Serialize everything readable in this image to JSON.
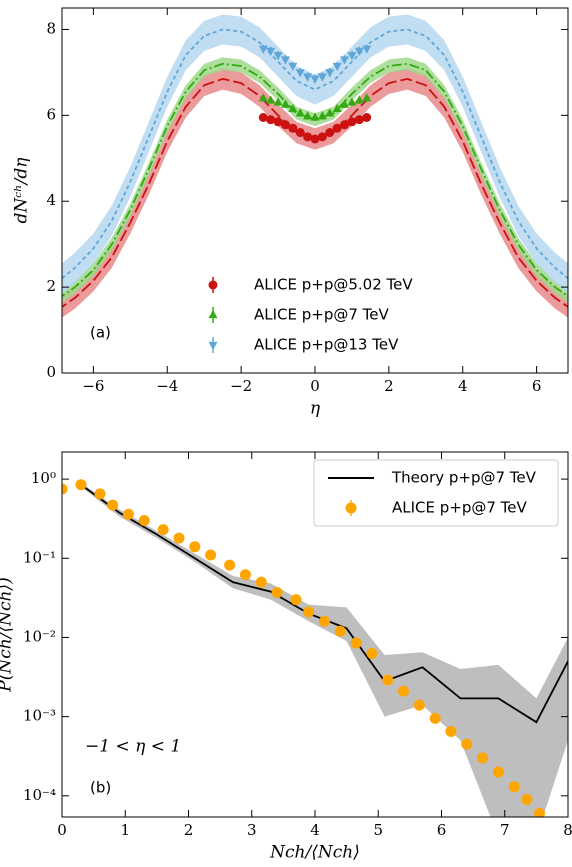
{
  "chart_data": [
    {
      "type": "line",
      "x_label": "η",
      "y_label": "dNᶜʰ/dη",
      "xlim": [
        -6.85,
        6.85
      ],
      "ylim": [
        0,
        8.5
      ],
      "xticks": [
        {
          "value": -6,
          "label": "−6"
        },
        {
          "value": -4,
          "label": "−4"
        },
        {
          "value": -2,
          "label": "−2"
        },
        0,
        2,
        4,
        6
      ],
      "yticks": [
        0,
        2,
        4,
        6,
        8
      ],
      "legend": "lower center",
      "annotations": [
        "(a)"
      ],
      "series": [
        {
          "kind": "line",
          "style": "dashed",
          "color": "#cc1111",
          "band_color": "#e88a8a",
          "error": 0.25,
          "x": [
            -7,
            -6.5,
            -6,
            -5.5,
            -5,
            -4.5,
            -4,
            -3.5,
            -3,
            -2.5,
            -2,
            -1.5,
            -1,
            -0.5,
            0,
            0.5,
            1,
            1.5,
            2,
            2.5,
            3,
            3.5,
            4,
            4.5,
            5,
            5.5,
            6,
            6.5,
            7
          ],
          "values": [
            1.45,
            1.75,
            2.15,
            2.7,
            3.5,
            4.4,
            5.4,
            6.2,
            6.7,
            6.85,
            6.75,
            6.45,
            6.0,
            5.6,
            5.45,
            5.6,
            6.0,
            6.45,
            6.75,
            6.85,
            6.7,
            6.2,
            5.4,
            4.4,
            3.5,
            2.7,
            2.15,
            1.75,
            1.45
          ]
        },
        {
          "kind": "line",
          "style": "dashdot",
          "color": "#33aa11",
          "band_color": "#9fd88a",
          "error": 0.15,
          "x": [
            -7,
            -6.5,
            -6,
            -5.5,
            -5,
            -4.5,
            -4,
            -3.5,
            -3,
            -2.5,
            -2,
            -1.5,
            -1,
            -0.5,
            0,
            0.5,
            1,
            1.5,
            2,
            2.5,
            3,
            3.5,
            4,
            4.5,
            5,
            5.5,
            6,
            6.5,
            7
          ],
          "values": [
            1.7,
            2.0,
            2.4,
            3.0,
            3.8,
            4.75,
            5.75,
            6.55,
            7.05,
            7.2,
            7.15,
            6.9,
            6.5,
            6.05,
            5.9,
            6.05,
            6.5,
            6.9,
            7.15,
            7.2,
            7.05,
            6.55,
            5.75,
            4.75,
            3.8,
            3.0,
            2.4,
            2.0,
            1.7
          ]
        },
        {
          "kind": "line",
          "style": "dotted",
          "color": "#5fa7d9",
          "band_color": "#b5d7ef",
          "error": 0.35,
          "x": [
            -7,
            -6.5,
            -6,
            -5.5,
            -5,
            -4.5,
            -4,
            -3.5,
            -3,
            -2.5,
            -2,
            -1.5,
            -1,
            -0.5,
            0,
            0.5,
            1,
            1.5,
            2,
            2.5,
            3,
            3.5,
            4,
            4.5,
            5,
            5.5,
            6,
            6.5,
            7
          ],
          "values": [
            2.1,
            2.45,
            2.9,
            3.55,
            4.45,
            5.5,
            6.55,
            7.4,
            7.85,
            8.0,
            7.95,
            7.7,
            7.25,
            6.8,
            6.6,
            6.8,
            7.25,
            7.7,
            7.95,
            8.0,
            7.85,
            7.4,
            6.55,
            5.5,
            4.45,
            3.55,
            2.9,
            2.45,
            2.1
          ]
        },
        {
          "kind": "scatter",
          "name": "ALICE p+p@5.02 TeV",
          "marker": "circle",
          "color": "#cc1111",
          "error": 0.05,
          "x": [
            -1.4,
            -1.2,
            -1.0,
            -0.8,
            -0.6,
            -0.4,
            -0.2,
            0,
            0.2,
            0.4,
            0.6,
            0.8,
            1.0,
            1.2,
            1.4
          ],
          "values": [
            5.95,
            5.9,
            5.85,
            5.78,
            5.7,
            5.6,
            5.5,
            5.45,
            5.5,
            5.6,
            5.7,
            5.78,
            5.85,
            5.9,
            5.95
          ]
        },
        {
          "kind": "scatter",
          "name": "ALICE p+p@7 TeV",
          "marker": "triangle-up",
          "color": "#33aa11",
          "error": 0.08,
          "x": [
            -1.4,
            -1.2,
            -1.0,
            -0.8,
            -0.6,
            -0.4,
            -0.2,
            0,
            0.2,
            0.4,
            0.6,
            0.8,
            1.0,
            1.2,
            1.4
          ],
          "values": [
            6.4,
            6.35,
            6.3,
            6.25,
            6.15,
            6.05,
            5.98,
            5.95,
            5.98,
            6.05,
            6.15,
            6.25,
            6.3,
            6.35,
            6.4
          ]
        },
        {
          "kind": "scatter",
          "name": "ALICE p+p@13 TeV",
          "marker": "triangle-down",
          "color": "#5fa7d9",
          "error": 0.1,
          "x": [
            -1.4,
            -1.2,
            -1.0,
            -0.8,
            -0.6,
            -0.4,
            -0.2,
            0,
            0.2,
            0.4,
            0.6,
            0.8,
            1.0,
            1.2,
            1.4
          ],
          "values": [
            7.55,
            7.5,
            7.4,
            7.3,
            7.15,
            7.0,
            6.9,
            6.85,
            6.9,
            7.0,
            7.15,
            7.3,
            7.4,
            7.5,
            7.55
          ]
        }
      ]
    },
    {
      "type": "line",
      "x_label": "Nch/⟨Nch⟩",
      "y_label": "P(Nch/⟨Nch⟩)",
      "xlim": [
        0,
        8
      ],
      "ylim": [
        5.4e-05,
        2.2
      ],
      "yscale": "log",
      "xticks": [
        0,
        1,
        2,
        3,
        4,
        5,
        6,
        7,
        8
      ],
      "yticks": [
        {
          "value": 1,
          "label": "10⁰"
        },
        {
          "value": 0.1,
          "label": "10⁻¹"
        },
        {
          "value": 0.01,
          "label": "10⁻²"
        },
        {
          "value": 0.001,
          "label": "10⁻³"
        },
        {
          "value": 0.0001,
          "label": "10⁻⁴"
        }
      ],
      "legend": "upper right",
      "annotations": [
        "−1 < η < 1",
        "(b)"
      ],
      "series": [
        {
          "kind": "line",
          "name": "Theory p+p@7 TeV",
          "style": "solid",
          "color": "#000000",
          "band_color": "#b3b3b3",
          "x": [
            0.3,
            0.9,
            1.5,
            2.1,
            2.7,
            3.3,
            3.9,
            4.5,
            5.1,
            5.7,
            6.3,
            6.9,
            7.5,
            8
          ],
          "values": [
            0.85,
            0.38,
            0.2,
            0.1,
            0.05,
            0.038,
            0.02,
            0.013,
            0.0028,
            0.0042,
            0.0017,
            0.0017,
            0.00085,
            0.005
          ],
          "lower": [
            0.8,
            0.34,
            0.18,
            0.09,
            0.042,
            0.03,
            0.016,
            0.009,
            0.001,
            0.0014,
            0.0005,
            3e-05,
            3e-05,
            0.0005
          ],
          "upper": [
            0.9,
            0.42,
            0.22,
            0.115,
            0.06,
            0.048,
            0.026,
            0.024,
            0.006,
            0.0065,
            0.004,
            0.0045,
            0.0017,
            0.01
          ]
        },
        {
          "kind": "scatter",
          "name": "ALICE p+p@7 TeV",
          "marker": "circle",
          "color": "#ffa500",
          "x": [
            0,
            0.3,
            0.6,
            0.8,
            1.05,
            1.3,
            1.6,
            1.85,
            2.1,
            2.35,
            2.65,
            2.9,
            3.15,
            3.4,
            3.7,
            3.9,
            4.15,
            4.4,
            4.65,
            4.9,
            5.15,
            5.4,
            5.65,
            5.9,
            6.15,
            6.4,
            6.65,
            6.9,
            7.15,
            7.35,
            7.55
          ],
          "values": [
            0.75,
            0.85,
            0.65,
            0.47,
            0.36,
            0.3,
            0.23,
            0.18,
            0.14,
            0.11,
            0.082,
            0.062,
            0.05,
            0.037,
            0.03,
            0.021,
            0.016,
            0.012,
            0.0085,
            0.0063,
            0.0029,
            0.0021,
            0.0014,
            0.00095,
            0.00065,
            0.00045,
            0.0003,
            0.0002,
            0.00013,
            9e-05,
            6e-05
          ]
        }
      ]
    }
  ]
}
